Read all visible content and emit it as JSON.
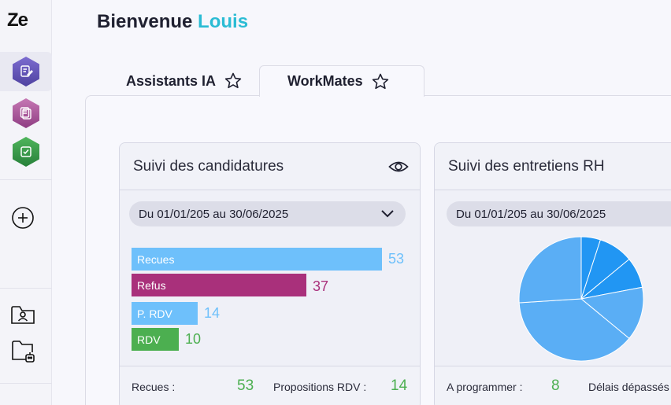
{
  "app": {
    "logo": "Ze"
  },
  "header": {
    "greeting_prefix": "Bienvenue ",
    "user_name": "Louis"
  },
  "tabs": [
    {
      "label": "Assistants IA",
      "active": false
    },
    {
      "label": "WorkMates",
      "active": true
    }
  ],
  "cards": {
    "candidatures": {
      "title": "Suivi des candidatures",
      "date_range": "Du 01/01/205 au 30/06/2025",
      "bars": [
        {
          "label": "Recues",
          "value": 53,
          "color": "#6ec0fb",
          "value_color": "#6ec0fb"
        },
        {
          "label": "Refus",
          "value": 37,
          "color": "#a9307b",
          "value_color": "#a9307b"
        },
        {
          "label": "P. RDV",
          "value": 14,
          "color": "#6ec0fb",
          "value_color": "#6ec0fb"
        },
        {
          "label": "RDV",
          "value": 10,
          "color": "#4caf50",
          "value_color": "#4caf50"
        }
      ],
      "footer": [
        {
          "label": "Recues :",
          "value": "53"
        },
        {
          "label": "Propositions RDV :",
          "value": "14"
        }
      ]
    },
    "entretiens": {
      "title": "Suivi des entretiens RH",
      "date_range": "Du 01/01/205 au 30/06/2025",
      "footer": [
        {
          "label": "A programmer :",
          "value": "8"
        },
        {
          "label": "Délais dépassés",
          "value": ""
        }
      ]
    }
  },
  "chart_data": {
    "type": "pie",
    "slices": [
      {
        "value": 5,
        "color": "#2196f3"
      },
      {
        "value": 9,
        "color": "#2196f3"
      },
      {
        "value": 8,
        "color": "#2196f3"
      },
      {
        "value": 14,
        "color": "#5aaef5"
      },
      {
        "value": 38,
        "color": "#5aaef5"
      },
      {
        "value": 26,
        "color": "#5aaef5"
      }
    ]
  },
  "colors": {
    "accent": "#2bbcd4",
    "hex_purple": "#6b5bb8",
    "hex_pink": "#a9579b",
    "hex_green": "#3a9a4a"
  }
}
